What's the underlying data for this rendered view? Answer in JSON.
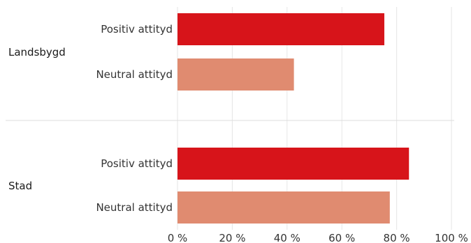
{
  "chart_data": {
    "type": "bar",
    "orientation": "horizontal",
    "xlim": [
      0,
      100
    ],
    "x_ticks": [
      "0 %",
      "20 %",
      "40 %",
      "60 %",
      "80 %",
      "100 %"
    ],
    "x_tick_values": [
      0,
      20,
      40,
      60,
      80,
      100
    ],
    "grid": "vertical",
    "groups": [
      {
        "name": "Landsbygd",
        "bars": [
          {
            "label": "Positiv attityd",
            "value": 75.5,
            "color": "#d7141a"
          },
          {
            "label": "Neutral attityd",
            "value": 42.5,
            "color": "#e08b70"
          }
        ]
      },
      {
        "name": "Stad",
        "bars": [
          {
            "label": "Positiv attityd",
            "value": 84.5,
            "color": "#d7141a"
          },
          {
            "label": "Neutral attityd",
            "value": 77.5,
            "color": "#e08b70"
          }
        ]
      }
    ]
  }
}
